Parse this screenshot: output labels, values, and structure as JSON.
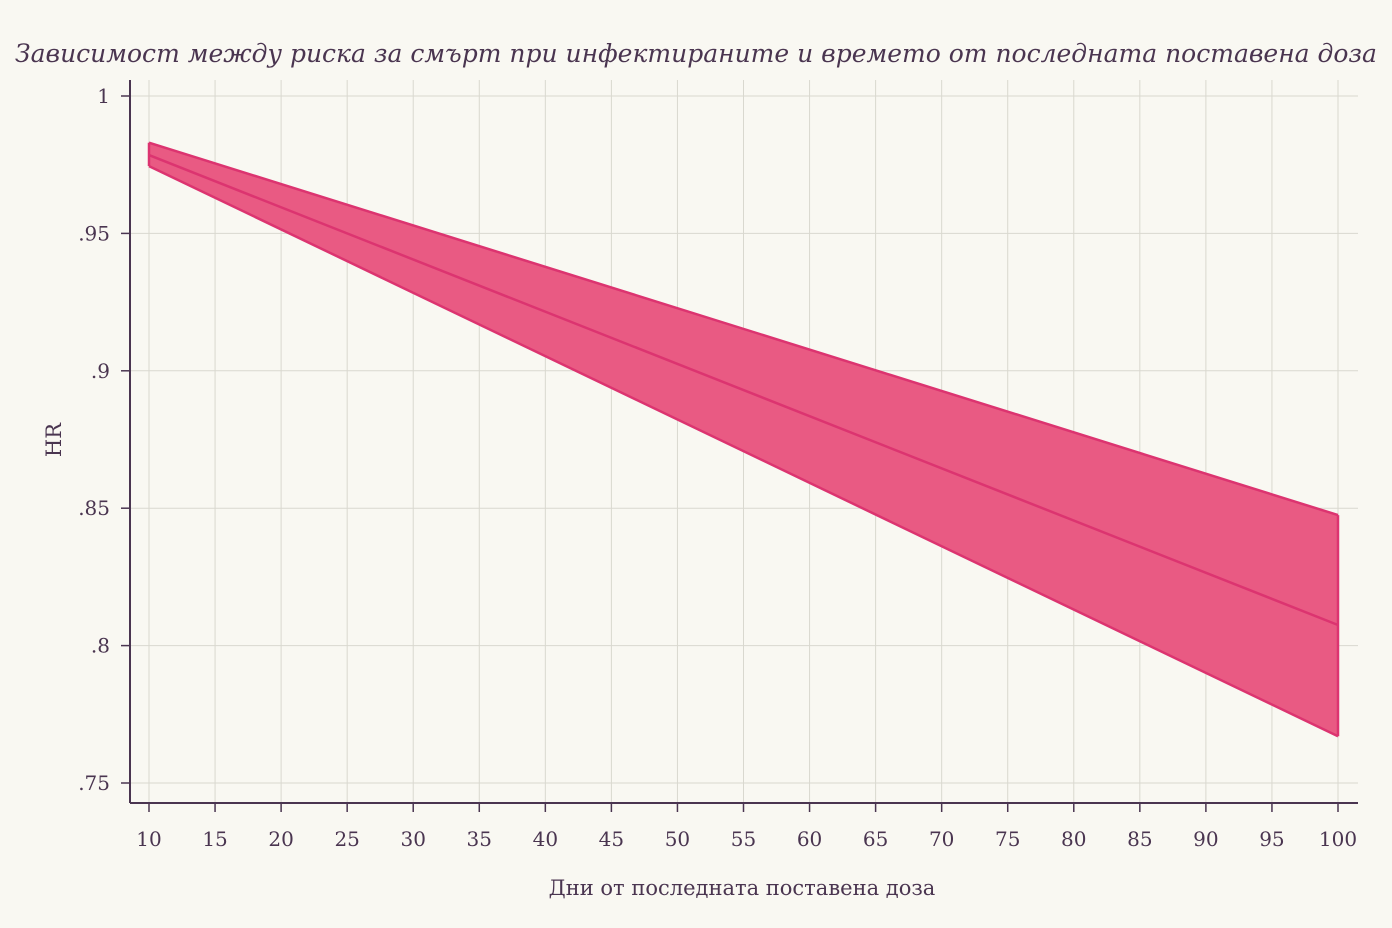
{
  "chart_data": {
    "type": "area",
    "title": "Зависимост между риска за смърт при инфектираните и времето от последната поставена доза",
    "xlabel": "Дни от последната поставена доза",
    "ylabel": "HR",
    "xlim": [
      10,
      100
    ],
    "ylim": [
      0.75,
      1.0
    ],
    "x_ticks": [
      10,
      15,
      20,
      25,
      30,
      35,
      40,
      45,
      50,
      55,
      60,
      65,
      70,
      75,
      80,
      85,
      90,
      95,
      100
    ],
    "y_ticks": [
      0.75,
      0.8,
      0.85,
      0.9,
      0.95,
      1.0
    ],
    "y_tick_labels": [
      ".75",
      ".8",
      ".85",
      ".9",
      ".95",
      "1"
    ],
    "grid": true,
    "x": [
      10,
      100
    ],
    "series": [
      {
        "role": "estimate",
        "values": [
          0.9785,
          0.8075
        ]
      },
      {
        "role": "upper",
        "values": [
          0.983,
          0.8475
        ]
      },
      {
        "role": "lower",
        "values": [
          0.9745,
          0.767
        ]
      }
    ],
    "colors": {
      "band_fill": "#e95a83",
      "line": "#dc3470",
      "background": "#f9f8f2",
      "axis": "#4a3550",
      "grid": "#d9d8cf",
      "text": "#4a3550"
    }
  }
}
